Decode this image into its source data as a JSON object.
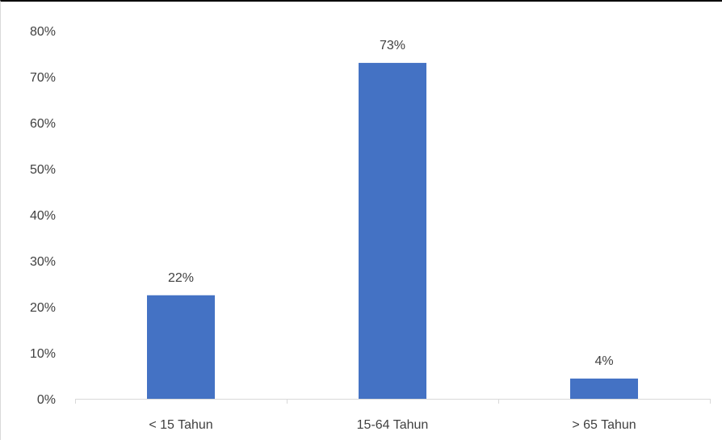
{
  "chart_data": {
    "type": "bar",
    "title": "",
    "xlabel": "",
    "ylabel": "",
    "categories": [
      "< 15 Tahun",
      "15-64 Tahun",
      "> 65 Tahun"
    ],
    "values": [
      22.5,
      73,
      4.4
    ],
    "data_labels": [
      "22%",
      "73%",
      "4%"
    ],
    "ylim": [
      0,
      80
    ],
    "yticks": [
      0,
      10,
      20,
      30,
      40,
      50,
      60,
      70,
      80
    ],
    "ytick_labels": [
      "0%",
      "10%",
      "20%",
      "30%",
      "40%",
      "50%",
      "60%",
      "70%",
      "80%"
    ],
    "grid": false,
    "legend": "none",
    "colors": {
      "bar": "#4472c4",
      "axis": "#d9d9d9",
      "text": "#404040"
    }
  }
}
